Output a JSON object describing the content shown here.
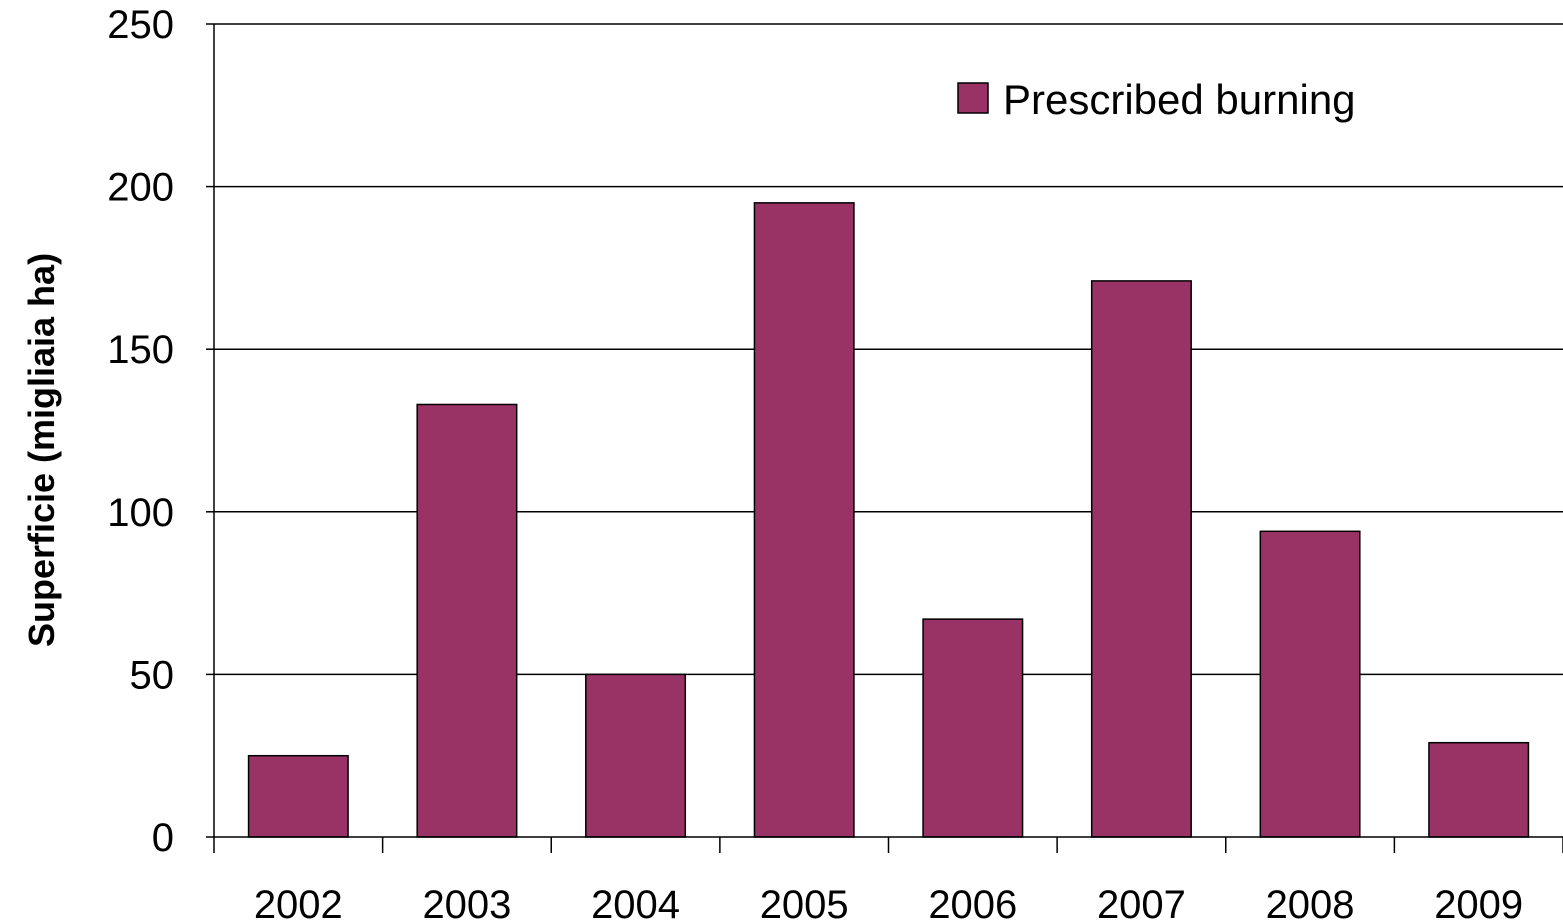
{
  "chart_data": {
    "type": "bar",
    "title": "",
    "xlabel": "",
    "ylabel": "Superficie (migliaia ha)",
    "categories": [
      "2002",
      "2003",
      "2004",
      "2005",
      "2006",
      "2007",
      "2008",
      "2009"
    ],
    "series": [
      {
        "name": "Prescribed burning",
        "values": [
          25,
          133,
          50,
          195,
          67,
          171,
          94,
          29
        ]
      }
    ],
    "ylim": [
      0,
      250
    ],
    "yticks": [
      "0",
      "50",
      "100",
      "150",
      "200",
      "250"
    ],
    "grid": true,
    "legend_position": "top-right",
    "colors": {
      "bar": "#993366",
      "bar_stroke": "#000000",
      "grid": "#000000",
      "background": "#ffffff"
    }
  }
}
